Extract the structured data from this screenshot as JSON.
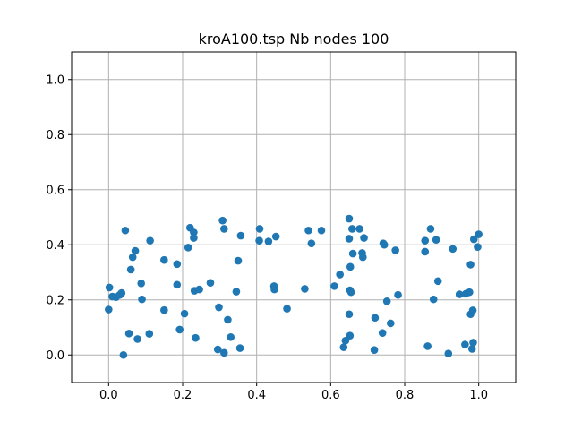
{
  "chart_data": {
    "type": "scatter",
    "title": "kroA100.tsp Nb nodes 100",
    "xlabel": "",
    "ylabel": "",
    "xlim": [
      -0.1,
      1.1
    ],
    "ylim": [
      -0.1,
      1.1
    ],
    "grid": true,
    "color": "#1f77b4",
    "x_ticks": [
      "0.0",
      "0.2",
      "0.4",
      "0.6",
      "0.8",
      "1.0"
    ],
    "y_ticks": [
      "0.0",
      "0.2",
      "0.4",
      "0.6",
      "0.8",
      "1.0"
    ],
    "points": [
      [
        0.0,
        0.165
      ],
      [
        0.002,
        0.245
      ],
      [
        0.01,
        0.212
      ],
      [
        0.02,
        0.21
      ],
      [
        0.03,
        0.218
      ],
      [
        0.035,
        0.225
      ],
      [
        0.04,
        0.0
      ],
      [
        0.045,
        0.452
      ],
      [
        0.055,
        0.078
      ],
      [
        0.06,
        0.31
      ],
      [
        0.065,
        0.355
      ],
      [
        0.072,
        0.378
      ],
      [
        0.078,
        0.058
      ],
      [
        0.088,
        0.26
      ],
      [
        0.09,
        0.202
      ],
      [
        0.11,
        0.077
      ],
      [
        0.112,
        0.415
      ],
      [
        0.15,
        0.345
      ],
      [
        0.15,
        0.163
      ],
      [
        0.185,
        0.255
      ],
      [
        0.185,
        0.33
      ],
      [
        0.192,
        0.092
      ],
      [
        0.205,
        0.15
      ],
      [
        0.215,
        0.39
      ],
      [
        0.22,
        0.462
      ],
      [
        0.23,
        0.445
      ],
      [
        0.23,
        0.425
      ],
      [
        0.232,
        0.233
      ],
      [
        0.235,
        0.062
      ],
      [
        0.245,
        0.238
      ],
      [
        0.275,
        0.262
      ],
      [
        0.295,
        0.02
      ],
      [
        0.298,
        0.173
      ],
      [
        0.308,
        0.488
      ],
      [
        0.312,
        0.458
      ],
      [
        0.312,
        0.008
      ],
      [
        0.322,
        0.128
      ],
      [
        0.33,
        0.065
      ],
      [
        0.345,
        0.23
      ],
      [
        0.35,
        0.342
      ],
      [
        0.355,
        0.025
      ],
      [
        0.357,
        0.433
      ],
      [
        0.407,
        0.415
      ],
      [
        0.408,
        0.458
      ],
      [
        0.432,
        0.412
      ],
      [
        0.447,
        0.25
      ],
      [
        0.448,
        0.238
      ],
      [
        0.452,
        0.43
      ],
      [
        0.482,
        0.168
      ],
      [
        0.53,
        0.24
      ],
      [
        0.54,
        0.452
      ],
      [
        0.548,
        0.405
      ],
      [
        0.575,
        0.452
      ],
      [
        0.61,
        0.25
      ],
      [
        0.625,
        0.292
      ],
      [
        0.635,
        0.028
      ],
      [
        0.64,
        0.052
      ],
      [
        0.65,
        0.495
      ],
      [
        0.65,
        0.422
      ],
      [
        0.65,
        0.148
      ],
      [
        0.652,
        0.07
      ],
      [
        0.652,
        0.235
      ],
      [
        0.655,
        0.228
      ],
      [
        0.653,
        0.32
      ],
      [
        0.658,
        0.458
      ],
      [
        0.66,
        0.368
      ],
      [
        0.678,
        0.458
      ],
      [
        0.685,
        0.37
      ],
      [
        0.687,
        0.355
      ],
      [
        0.69,
        0.425
      ],
      [
        0.718,
        0.018
      ],
      [
        0.72,
        0.135
      ],
      [
        0.74,
        0.08
      ],
      [
        0.742,
        0.405
      ],
      [
        0.745,
        0.4
      ],
      [
        0.752,
        0.195
      ],
      [
        0.762,
        0.115
      ],
      [
        0.775,
        0.38
      ],
      [
        0.782,
        0.218
      ],
      [
        0.855,
        0.415
      ],
      [
        0.855,
        0.375
      ],
      [
        0.862,
        0.032
      ],
      [
        0.87,
        0.458
      ],
      [
        0.878,
        0.202
      ],
      [
        0.885,
        0.418
      ],
      [
        0.89,
        0.268
      ],
      [
        0.918,
        0.005
      ],
      [
        0.93,
        0.385
      ],
      [
        0.948,
        0.22
      ],
      [
        0.963,
        0.038
      ],
      [
        0.965,
        0.222
      ],
      [
        0.975,
        0.228
      ],
      [
        0.978,
        0.328
      ],
      [
        0.978,
        0.148
      ],
      [
        0.982,
        0.022
      ],
      [
        0.984,
        0.162
      ],
      [
        0.985,
        0.045
      ],
      [
        0.987,
        0.42
      ],
      [
        0.997,
        0.392
      ],
      [
        1.0,
        0.438
      ]
    ]
  }
}
